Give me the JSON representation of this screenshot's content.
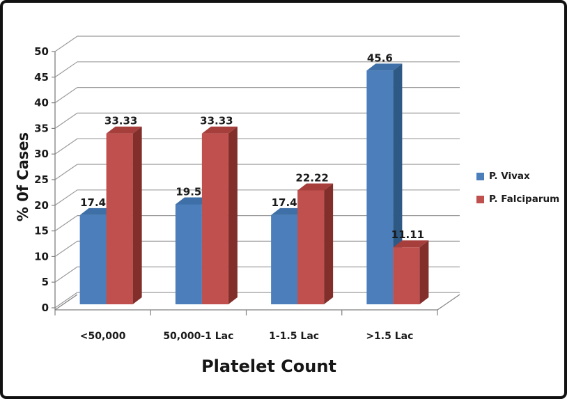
{
  "window": {
    "background": "#ffffff",
    "border_color": "#111111"
  },
  "chart_data": {
    "type": "bar",
    "variant": "3d-clustered-column",
    "title": "",
    "xlabel": "Platelet Count",
    "ylabel": "% 0f Cases",
    "categories": [
      "<50,000",
      "50,000-1 Lac",
      "1-1.5 Lac",
      ">1.5 Lac"
    ],
    "series": [
      {
        "name": "P. Vivax",
        "values": [
          17.4,
          19.5,
          17.4,
          45.6
        ],
        "labels": [
          "17.4",
          "19.5",
          "17.4",
          "45.6"
        ],
        "color_front": "#4B7EBB",
        "color_top": "#3E6FA6",
        "color_side": "#2E5984"
      },
      {
        "name": "P. Falciparum",
        "values": [
          33.33,
          33.33,
          22.22,
          11.11
        ],
        "labels": [
          "33.33",
          "33.33",
          "22.22",
          "11.11"
        ],
        "color_front": "#C0504D",
        "color_top": "#A63F3C",
        "color_side": "#822F2C"
      }
    ],
    "ylim": [
      0,
      50
    ],
    "ytick_step": 5,
    "yticks": [
      0,
      5,
      10,
      15,
      20,
      25,
      30,
      35,
      40,
      45,
      50
    ],
    "grid": true,
    "legend_position": "right",
    "gridline_color": "#9B9B9B",
    "axis_color": "#808080",
    "text_color": "#1A1A1A"
  },
  "legend": {
    "items": [
      {
        "label": "P. Vivax",
        "color": "#4B7EBB"
      },
      {
        "label": "P. Falciparum",
        "color": "#C0504D"
      }
    ]
  }
}
